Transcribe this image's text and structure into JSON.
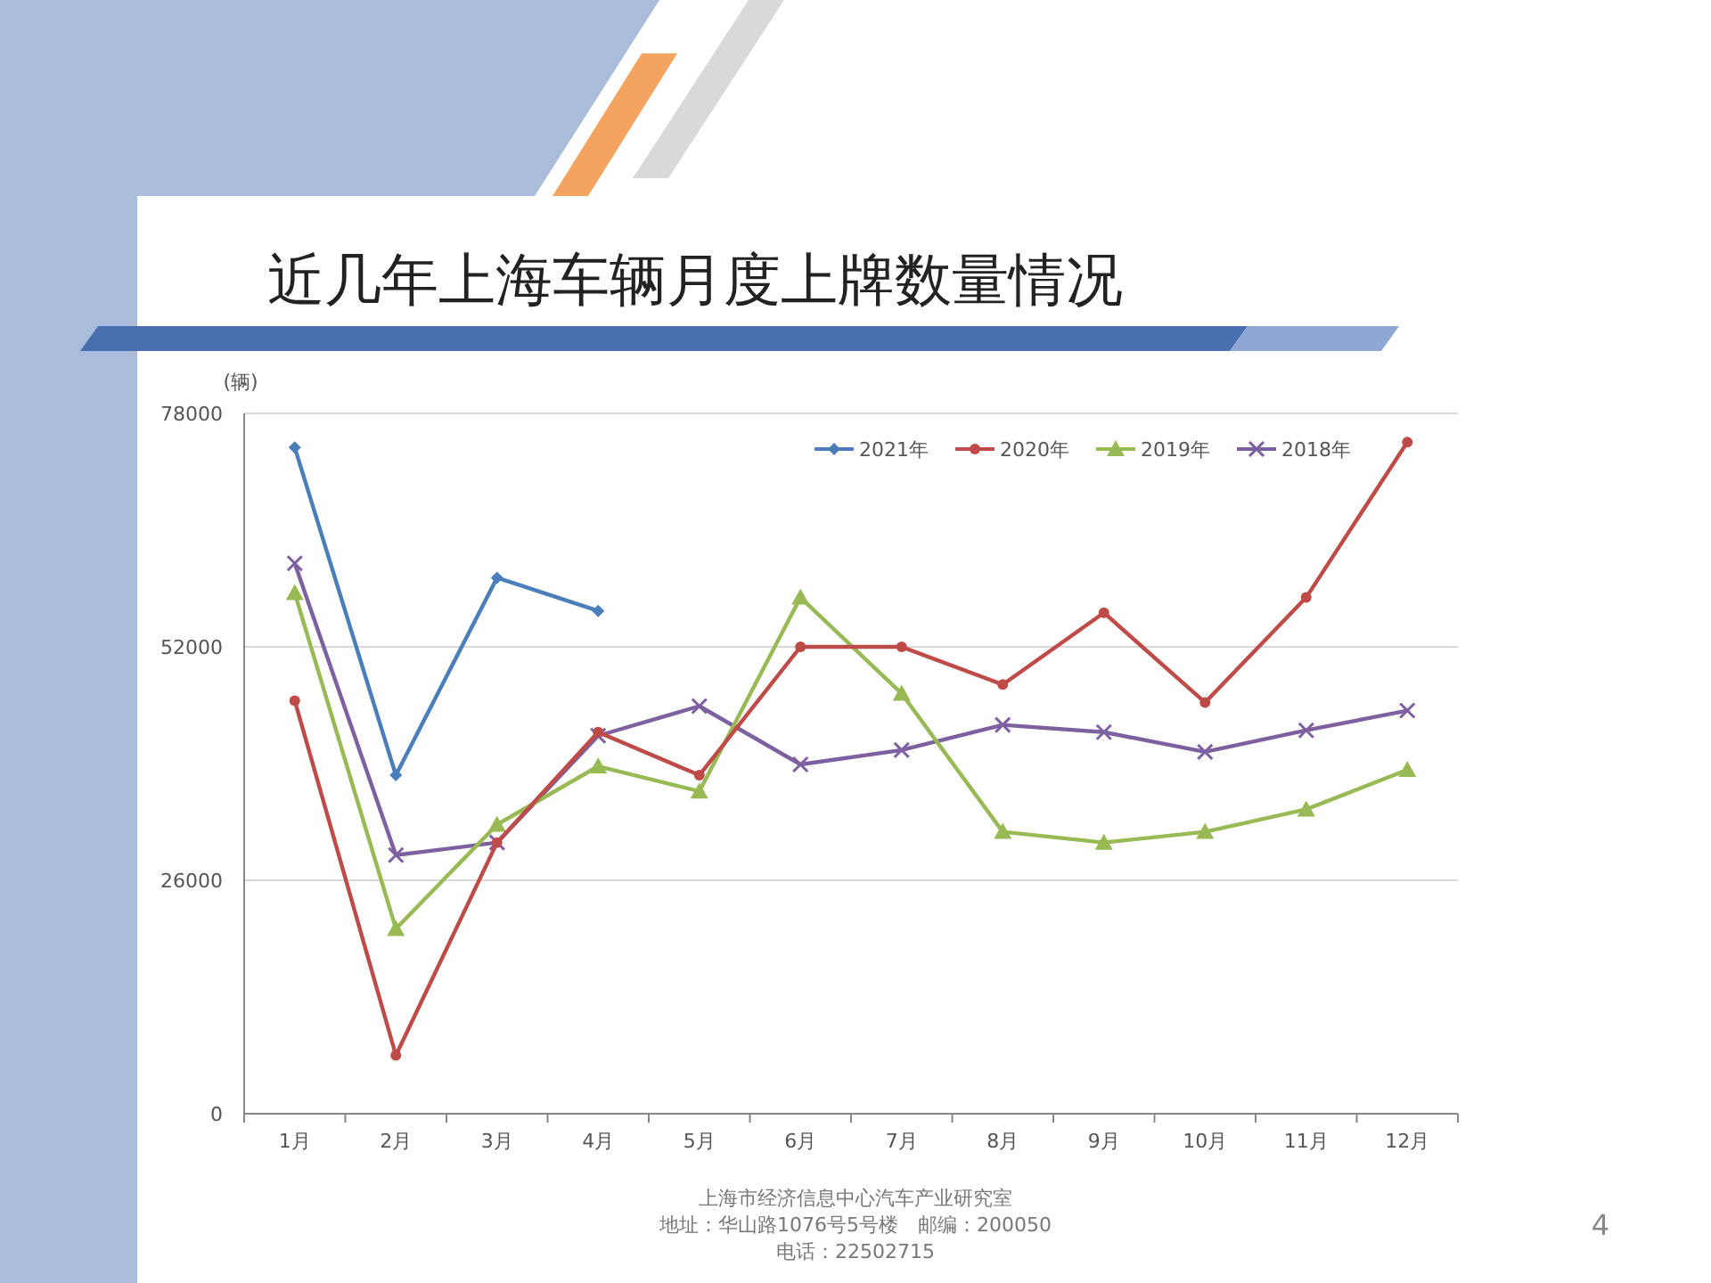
{
  "chart_data": {
    "type": "line",
    "title": "近几年上海车辆月度上牌数量情况",
    "ylabel": "(辆)",
    "categories": [
      "1月",
      "2月",
      "3月",
      "4月",
      "5月",
      "6月",
      "7月",
      "8月",
      "9月",
      "10月",
      "11月",
      "12月"
    ],
    "series": [
      {
        "name": "2021年",
        "color": "#4a7ebb",
        "marker": "diamond",
        "values": [
          74200,
          37700,
          59700,
          56000,
          null,
          null,
          null,
          null,
          null,
          null,
          null,
          null
        ]
      },
      {
        "name": "2020年",
        "color": "#be4b48",
        "marker": "circle",
        "values": [
          46000,
          6500,
          30200,
          42500,
          37700,
          52000,
          52000,
          47800,
          55800,
          45800,
          57500,
          74800
        ]
      },
      {
        "name": "2019年",
        "color": "#98b954",
        "marker": "triangle",
        "values": [
          58000,
          20600,
          32200,
          38700,
          35900,
          57500,
          46800,
          31400,
          30200,
          31400,
          33900,
          38300
        ]
      },
      {
        "name": "2018年",
        "color": "#7d60a0",
        "marker": "cross",
        "values": [
          61300,
          28800,
          30200,
          42100,
          45400,
          38900,
          40500,
          43300,
          42500,
          40300,
          42700,
          44900
        ]
      }
    ],
    "ylim": [
      0,
      78000
    ],
    "yticks": [
      0,
      26000,
      52000,
      78000
    ],
    "grid": "y",
    "legend": "top right",
    "line_style": "solid",
    "annotations": [
      "上海市经济信息中心汽车产业研究室",
      "地址：华山路1076号5号楼　邮编：200050",
      "电话：22502715",
      "4"
    ]
  }
}
